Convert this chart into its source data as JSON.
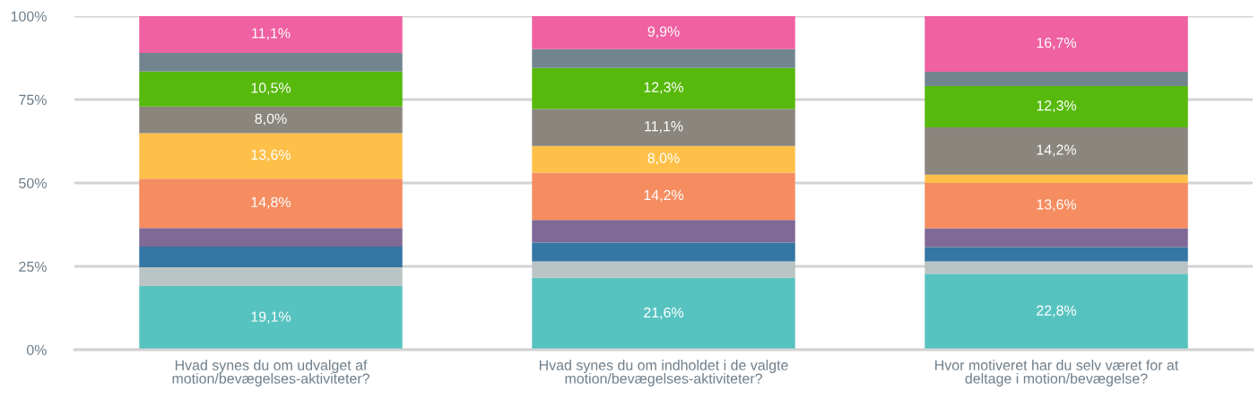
{
  "chart_data": {
    "type": "bar",
    "stacked": true,
    "categories": [
      "Hvad synes du om udvalget af\nmotion/bevægelses-aktiviteter?",
      "Hvad synes du om indholdet i de valgte\nmotion/bevægelses-aktiviteter?",
      "Hvor motiveret har du selv været for at\ndeltage i motion/bevægelse?"
    ],
    "series": [
      {
        "color": "#57c3c0",
        "values": [
          19.1,
          21.6,
          22.8
        ],
        "value_labels": [
          "19,1%",
          "21,6%",
          "22,8%"
        ]
      },
      {
        "color": "#bbc4c5",
        "values": [
          5.6,
          4.9,
          3.7
        ],
        "value_labels": [
          null,
          null,
          null
        ]
      },
      {
        "color": "#3476a4",
        "values": [
          6.2,
          5.6,
          4.3
        ],
        "value_labels": [
          null,
          null,
          null
        ]
      },
      {
        "color": "#7f6996",
        "values": [
          5.6,
          6.8,
          5.6
        ],
        "value_labels": [
          null,
          null,
          null
        ]
      },
      {
        "color": "#f58d61",
        "values": [
          14.8,
          14.2,
          13.6
        ],
        "value_labels": [
          "14,8%",
          "14,2%",
          "13,6%"
        ]
      },
      {
        "color": "#fec049",
        "values": [
          13.6,
          8.0,
          2.5
        ],
        "value_labels": [
          "13,6%",
          "8,0%",
          null
        ]
      },
      {
        "color": "#8a857d",
        "values": [
          8.0,
          11.1,
          14.2
        ],
        "value_labels": [
          "8,0%",
          "11,1%",
          "14,2%"
        ]
      },
      {
        "color": "#56b90b",
        "values": [
          10.5,
          12.3,
          12.3
        ],
        "value_labels": [
          "10,5%",
          "12,3%",
          "12,3%"
        ]
      },
      {
        "color": "#72858f",
        "values": [
          5.6,
          5.6,
          4.3
        ],
        "value_labels": [
          null,
          null,
          null
        ]
      },
      {
        "color": "#ef61a1",
        "values": [
          11.1,
          9.9,
          16.7
        ],
        "value_labels": [
          "11,1%",
          "9,9%",
          "16,7%"
        ]
      }
    ],
    "ylim": [
      0,
      100
    ],
    "yticks": [
      {
        "value": 0,
        "label": "0%"
      },
      {
        "value": 25,
        "label": "25%"
      },
      {
        "value": 50,
        "label": "50%"
      },
      {
        "value": 75,
        "label": "75%"
      },
      {
        "value": 100,
        "label": "100%"
      }
    ],
    "grid": "y"
  }
}
